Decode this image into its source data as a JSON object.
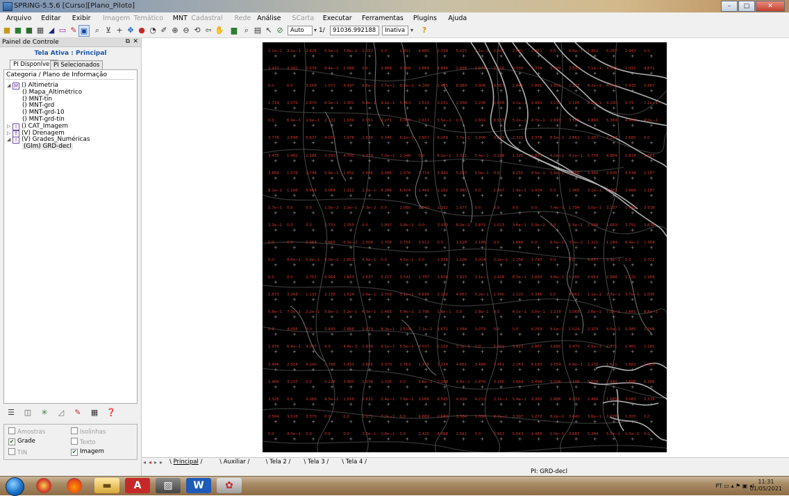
{
  "window": {
    "title": "SPRING-5.5.6 [Curso][Plano_Piloto]",
    "min": "–",
    "max": "□",
    "close": "✕"
  },
  "menu": [
    {
      "label": "Arquivo",
      "enabled": true
    },
    {
      "label": "Editar",
      "enabled": true
    },
    {
      "label": "Exibir",
      "enabled": true
    },
    {
      "label": "Imagem",
      "enabled": false
    },
    {
      "label": "Temático",
      "enabled": false
    },
    {
      "label": "MNT",
      "enabled": true
    },
    {
      "label": "Cadastral",
      "enabled": false
    },
    {
      "label": "Rede",
      "enabled": false
    },
    {
      "label": "Análise",
      "enabled": true
    },
    {
      "label": "SCarta",
      "enabled": false
    },
    {
      "label": "Executar",
      "enabled": true
    },
    {
      "label": "Ferramentas",
      "enabled": true
    },
    {
      "label": "Plugins",
      "enabled": true
    },
    {
      "label": "Ajuda",
      "enabled": true
    }
  ],
  "toolbar": {
    "scale_mode": "Auto",
    "scale_prefix": "1/",
    "scale_value": "91036.992188",
    "layer_state": "Inativa"
  },
  "panel": {
    "title": "Painel de Controle",
    "active_screen": "Tela Ativa : Principal",
    "tabs": [
      "PI Disponíveis",
      "PI Selecionados"
    ],
    "category_header": "Categoria / Plano de Informação",
    "tree": [
      {
        "text": "() Altimetria",
        "badge": "M",
        "level": 0,
        "toggle": "◢"
      },
      {
        "text": "() Mapa_Altimétrico",
        "level": 1
      },
      {
        "text": "() MNT-tin",
        "level": 1
      },
      {
        "text": "() MNT-grd",
        "level": 1
      },
      {
        "text": "() MNT-grd-10",
        "level": 1
      },
      {
        "text": "() MNT-grd-tin",
        "level": 1
      },
      {
        "text": "() CAT_Imagem",
        "badge": "I",
        "level": 0,
        "toggle": "▷"
      },
      {
        "text": "(V) Drenagem",
        "badge": "T",
        "level": 0,
        "toggle": "▷"
      },
      {
        "text": "(V) Grades_Numéricas",
        "badge": "I",
        "level": 0,
        "toggle": "◢"
      },
      {
        "text": "(Glm) GRD-decl",
        "level": 1,
        "selected": true
      }
    ],
    "checkboxes": [
      {
        "label": "Amostras",
        "checked": false,
        "enabled": false
      },
      {
        "label": "Isolinhas",
        "checked": false,
        "enabled": false
      },
      {
        "label": "Grade",
        "checked": true,
        "enabled": true
      },
      {
        "label": "Texto",
        "checked": false,
        "enabled": false
      },
      {
        "label": "TIN",
        "checked": false,
        "enabled": false
      },
      {
        "label": "Imagem",
        "checked": true,
        "enabled": true
      }
    ]
  },
  "tabs_bottom": [
    "Principal",
    "Auxiliar",
    "Tela 2",
    "Tela 3",
    "Tela 4"
  ],
  "status": {
    "pi": "PI: GRD-decl"
  },
  "taskbar": {
    "lang": "PT",
    "time": "11:31",
    "date": "01/05/2021"
  },
  "grid_values": [
    [
      "1.2e−1",
      "3.1e−1",
      "2.428",
      "5.5e−1",
      "7.8e−2",
      "1.032",
      "0.0",
      "1.651",
      "4.880",
      "2.158",
      "5.425",
      "1.1e−1",
      "2.647",
      "2.881",
      "2.853",
      "0.0",
      "8.6e−1",
      "1.952",
      "5.287",
      "2.943",
      "0.0"
    ],
    [
      "2.937",
      "3.281",
      "2.678",
      "9.4e−2",
      "2.688",
      "0.0",
      "2.888",
      "3.768",
      "2.869",
      "4.898",
      "2.858",
      "1.976",
      "2.616",
      "9.536",
      "5.358",
      "3.999",
      "3.835",
      "7.1e−1",
      "3.383",
      "1.011",
      "4.871"
    ],
    [
      "0.0",
      "0.0",
      "3.268",
      "1.071",
      "4.497",
      "6.5e−1",
      "7.7e−1",
      "6.3e−1",
      "4.288",
      "2.475",
      "6.089",
      "3.006",
      "9.857",
      "2.845",
      "2.881",
      "3.859",
      "2.367",
      "8.2e−1",
      "4.0e−1",
      "5.933",
      "5.967"
    ],
    [
      "1.729",
      "2.076",
      "2.870",
      "8.2e−1",
      "2.301",
      "6.4e−1",
      "4.2e−1",
      "5.963",
      "2.515",
      "2.131",
      "2.558",
      "1.236",
      "2.858",
      "3.1e−1",
      "3.483",
      "3.131",
      "2.185",
      "8.1e−1",
      "4.160",
      "1.74",
      "7.2e−1"
    ],
    [
      "0.0",
      "6.0e−1",
      "1.6e−1",
      "2.122",
      "1.939",
      "2.051",
      "4.272",
      "6.060",
      "2.613",
      "5.5e−1",
      "0.0",
      "2.602",
      "8.533",
      "5.2e−1",
      "4.7e−1",
      "1.693",
      "3.163",
      "4.860",
      "5.369",
      "4.408",
      "4.0e−1"
    ],
    [
      "2.778",
      "2.698",
      "5.677",
      "4.031",
      "3.978",
      "1.639",
      "2.346",
      "5.1e−1",
      "2.657",
      "4.269",
      "7.7e−1",
      "3.206",
      "3.003",
      "2.325",
      "1.378",
      "8.5e−1",
      "2.861",
      "2.287",
      "2.297",
      "2.680",
      "0.0"
    ],
    [
      "3.475",
      "1.481",
      "2.188",
      "3.290",
      "4.700",
      "1.379",
      "7.0e−1",
      "2.348",
      "0.0",
      "8.1e−1",
      "1.331",
      "5.4e−1",
      "2.208",
      "1.326",
      "1.803",
      "4.0e−1",
      "4.1e−1",
      "5.776",
      "4.884",
      "2.818",
      "1.063"
    ],
    [
      "3.868",
      "1.576",
      "2.748",
      "5.9e−1",
      "1.852",
      "2.664",
      "3.086",
      "1.476",
      "3.719",
      "5.490",
      "5.287",
      "5.0e−1",
      "0.0",
      "4.155",
      "4.5e−1",
      "5.8e−1",
      "2.485",
      "3.446",
      "3.005",
      "4.538",
      "1.187"
    ],
    [
      "8.1e−1",
      "1.106",
      "5.666",
      "3.068",
      "1.211",
      "2.2e−1",
      "4.286",
      "6.424",
      "1.460",
      "1.162",
      "5.985",
      "0.0",
      "2.697",
      "1.9e−1",
      "1.434",
      "0.0",
      "1.965",
      "3.1e−1",
      "3.383",
      "2.868",
      "1.187"
    ],
    [
      "1.7e−1",
      "0.0",
      "0.0",
      "1.0e−2",
      "2.3e−1",
      "7.3e−2",
      "0.0",
      "2.080",
      "1.842",
      "1.332",
      "1.677",
      "0.0",
      "0.0",
      "0.0",
      "0.0",
      "7.4e−1",
      "1.794",
      "3.0e−1",
      "3.137",
      "1.742",
      "3.538"
    ],
    [
      "2.3e−1",
      "0.0",
      "0.0",
      "2.731",
      "2.055",
      "0.0",
      "1.897",
      "3.8e−1",
      "0.0",
      "3.110",
      "8.2e−1",
      "3.871",
      "1.013",
      "3.6e−1",
      "5.0e−2",
      "0.0",
      "1.3e−1",
      "2.586",
      "1.663",
      "3.751",
      "2.838"
    ],
    [
      "0.0",
      "0.0",
      "2.264",
      "3.865",
      "6.3e−2",
      "1.008",
      "1.708",
      "1.754",
      "3.512",
      "0.0",
      "1.528",
      "2.188",
      "0.0",
      "1.668",
      "0.0",
      "6.5e−2",
      "3.5e−2",
      "1.221",
      "1.184",
      "9.4e−1",
      "1.364"
    ],
    [
      "0.0",
      "6.6e−1",
      "5.0e−1",
      "6.0e−3",
      "2.853",
      "4.4e−1",
      "0.0",
      "4.5e−1",
      "0.0",
      "1.358",
      "1.106",
      "3.004",
      "2.1e−1",
      "2.258",
      "1.793",
      "0.0",
      "0.0",
      "4.657",
      "3.4e−1",
      "0.0",
      "2.722"
    ],
    [
      "0.0",
      "0.0",
      "2.753",
      "6.064",
      "1.463",
      "1.637",
      "5.217",
      "3.541",
      "1.797",
      "1.608",
      "7.915",
      "3.1e−1",
      "2.428",
      "8.5e−1",
      "1.683",
      "4.8e−1",
      "5.160",
      "4.683",
      "2.988",
      "1.121",
      "1.989"
    ],
    [
      "1.673",
      "3.268",
      "1.133",
      "2.138",
      "1.524",
      "2.6e−1",
      "2.759",
      "3.1e−1",
      "4.695",
      "3.222",
      "4.667",
      "5.2e−1",
      "1.340",
      "2.120",
      "3.346",
      "0.0",
      "4.962",
      "1.1e−1",
      "2.3e−2",
      "3.7e−1",
      "1.035"
    ],
    [
      "5.8e−1",
      "7.0e−1",
      "2.2e−1",
      "5.8e−1",
      "5.2e−1",
      "6.3e−1",
      "1.466",
      "5.9e−1",
      "2.796",
      "1.6e−1",
      "0.0",
      "2.8e−1",
      "0.0",
      "4.1e−1",
      "3.0e−1",
      "1.219",
      "3.068",
      "2.6e−1",
      "7.0e−1",
      "2.861",
      "8.8e−1"
    ],
    [
      "0.0",
      "4.095",
      "0.0",
      "2.445",
      "2.888",
      "1.073",
      "8.3e−1",
      "2.518",
      "7.1e−2",
      "1.671",
      "1.284",
      "1.079",
      "0.0",
      "0.0",
      "4.293",
      "9.1e−1",
      "1.024",
      "2.329",
      "4.0e−2",
      "5.385",
      "1.366"
    ],
    [
      "1.978",
      "6.4e−1",
      "4.037",
      "0.0",
      "4.4e−3",
      "1.839",
      "4.1e−1",
      "5.5e−1",
      "4.037",
      "1.100",
      "3.7e−1",
      "0.0",
      "1.411",
      "3.923",
      "2.887",
      "3.665",
      "3.470",
      "4.5e−1",
      "2.871",
      "1.461",
      "1.181"
    ],
    [
      "2.496",
      "2.314",
      "4.240",
      "3.768",
      "5.453",
      "2.691",
      "2.070",
      "1.763",
      "1.378",
      "1.224",
      "4.661",
      "3.486",
      "1.451",
      "2.243",
      "6.193",
      "3.154",
      "6.8e−1",
      "2.230",
      "1.611",
      "1.882",
      "1.323"
    ],
    [
      "1.489",
      "3.237",
      "0.0",
      "2.226",
      "3.485",
      "1.038",
      "1.326",
      "0.0",
      "5.6e−1",
      "2.268",
      "4.0e−1",
      "1.879",
      "3.280",
      "3.894",
      "3.498",
      "3.308",
      "1.198",
      "8.638",
      "2.480",
      "2.888",
      "5.386"
    ],
    [
      "3.326",
      "0.0",
      "4.066",
      "4.5e−1",
      "1.556",
      "2.631",
      "2.4e−1",
      "7.6e−1",
      "3.066",
      "8.585",
      "4.026",
      "4.213",
      "2.7e−1",
      "5.4e−1",
      "3.365",
      "1.886",
      "4.233",
      "2.466",
      "1.685",
      "3.083",
      "2.378"
    ],
    [
      "2.584",
      "3.526",
      "3.370",
      "0.0",
      "0.0",
      "1.171",
      "7.2e−1",
      "0.0",
      "4.689",
      "2.680",
      "3.584",
      "1.086",
      "8.7e−1",
      "3.397",
      "1.272",
      "8.2e−1",
      "3.640",
      "3.6e−1",
      "2.378",
      "5.303",
      "0.0"
    ],
    [
      "0.0",
      "4.0e−1",
      "0.0",
      "0.0",
      "0.0",
      "3.8e−1",
      "1.8e−1",
      "0.0",
      "2.425",
      "4.068",
      "2.561",
      "0.0",
      "2.953",
      "5.643",
      "1.483",
      "1.0e−1",
      "3.683",
      "5.244",
      "5.5e−1",
      "1.3e−1",
      "0.0"
    ]
  ]
}
